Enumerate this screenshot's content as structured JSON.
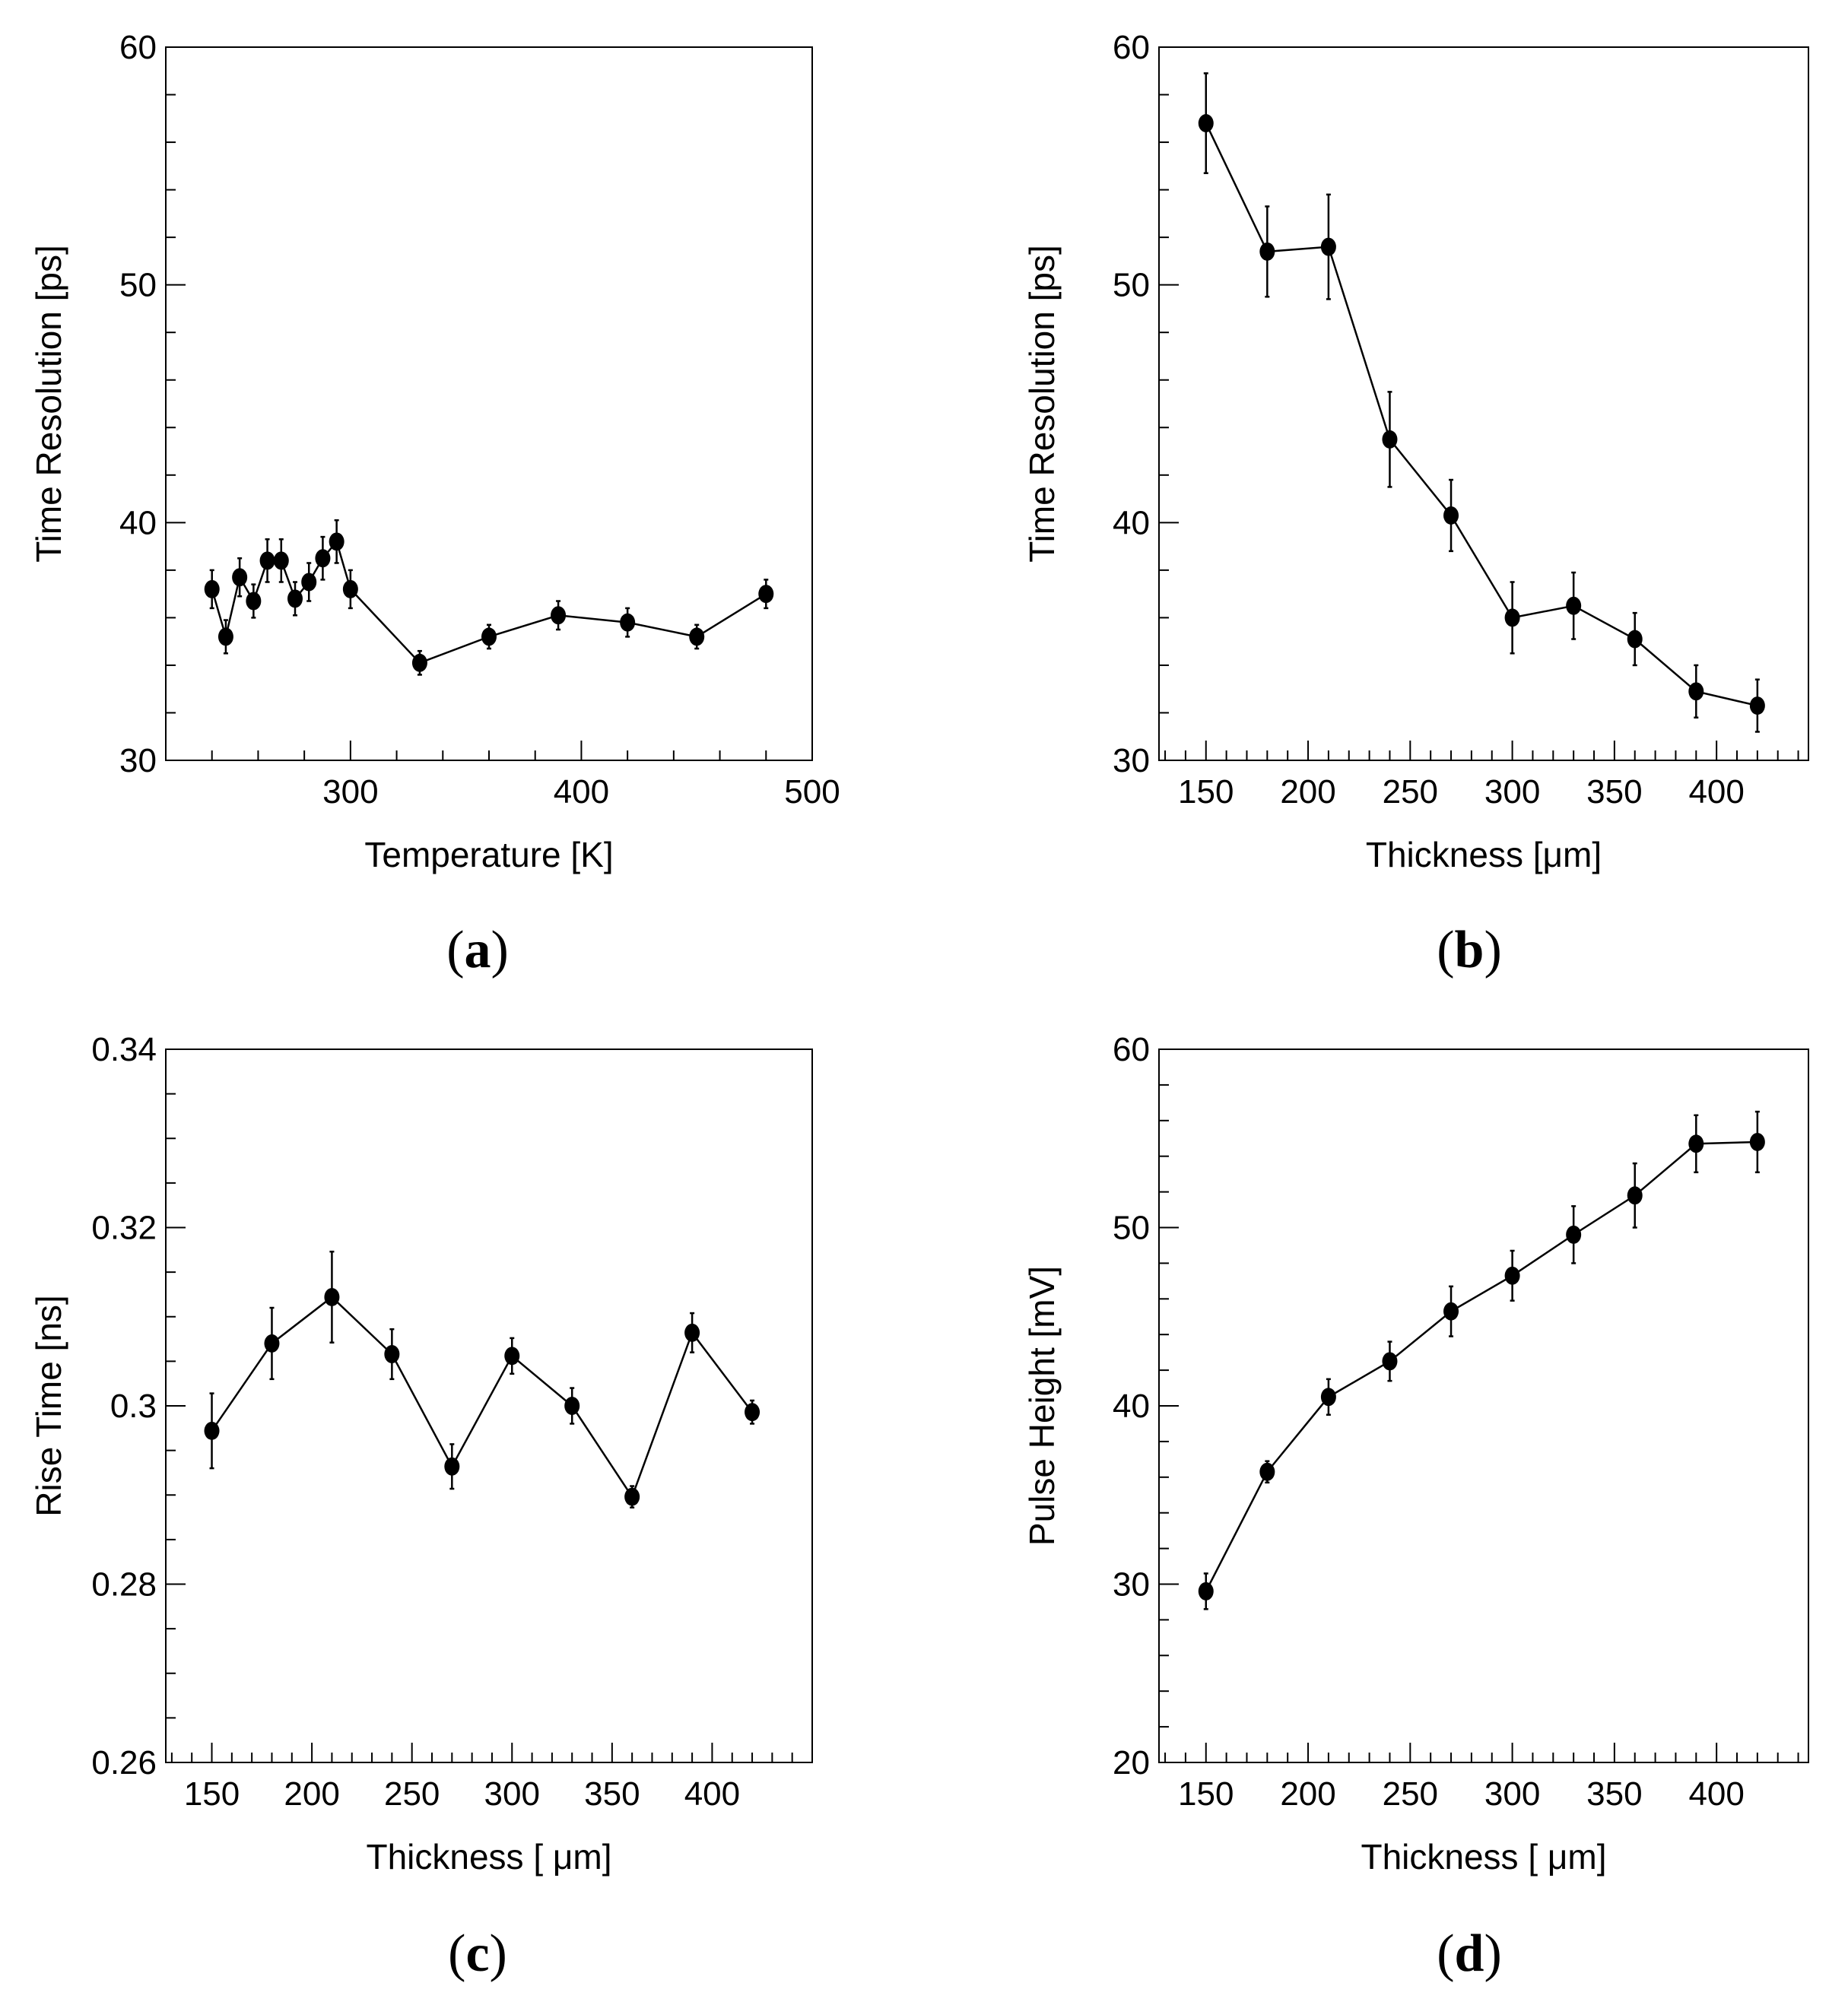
{
  "colors": {
    "background": "#ffffff",
    "ink": "#000000"
  },
  "chart_data": [
    {
      "type": "line",
      "panel": "a",
      "xlabel": "Temperature [K]",
      "ylabel": "Time Resolution [ps]",
      "xlim": [
        220,
        500
      ],
      "ylim": [
        30,
        60
      ],
      "xticks": [
        300,
        400,
        500
      ],
      "xtick_labels": [
        "300",
        "400",
        "500"
      ],
      "yticks": [
        30,
        40,
        50,
        60
      ],
      "ytick_labels": [
        "30",
        "40",
        "50",
        "60"
      ],
      "x_minor_step": 20,
      "y_minor_step": 2,
      "series": [
        {
          "name": "time-resolution-vs-temperature",
          "x": [
            240,
            246,
            252,
            258,
            264,
            270,
            276,
            282,
            288,
            294,
            300,
            330,
            360,
            390,
            420,
            450,
            480
          ],
          "y": [
            37.2,
            35.2,
            37.7,
            36.7,
            38.4,
            38.4,
            36.8,
            37.5,
            38.5,
            39.2,
            37.2,
            34.1,
            35.2,
            36.1,
            35.8,
            35.2,
            37.0
          ],
          "yerr": [
            0.8,
            0.7,
            0.8,
            0.7,
            0.9,
            0.9,
            0.7,
            0.8,
            0.9,
            0.9,
            0.8,
            0.5,
            0.5,
            0.6,
            0.6,
            0.5,
            0.6
          ]
        }
      ]
    },
    {
      "type": "line",
      "panel": "b",
      "xlabel": "Thickness [μm]",
      "ylabel": "Time Resolution [ps]",
      "xlim": [
        127,
        445
      ],
      "ylim": [
        30,
        60
      ],
      "xticks": [
        150,
        200,
        250,
        300,
        350,
        400
      ],
      "xtick_labels": [
        "150",
        "200",
        "250",
        "300",
        "350",
        "400"
      ],
      "yticks": [
        30,
        40,
        50,
        60
      ],
      "ytick_labels": [
        "30",
        "40",
        "50",
        "60"
      ],
      "x_minor_step": 10,
      "y_minor_step": 2,
      "series": [
        {
          "name": "time-resolution-vs-thickness",
          "x": [
            150,
            180,
            210,
            240,
            270,
            300,
            330,
            360,
            390,
            420
          ],
          "y": [
            56.8,
            51.4,
            51.6,
            43.5,
            40.3,
            36.0,
            36.5,
            35.1,
            32.9,
            32.3
          ],
          "yerr": [
            2.1,
            1.9,
            2.2,
            2.0,
            1.5,
            1.5,
            1.4,
            1.1,
            1.1,
            1.1
          ]
        }
      ]
    },
    {
      "type": "line",
      "panel": "c",
      "xlabel": "Thickness [ μm]",
      "ylabel": "Rise Time [ns]",
      "xlim": [
        127,
        450
      ],
      "ylim": [
        0.26,
        0.34
      ],
      "xticks": [
        150,
        200,
        250,
        300,
        350,
        400
      ],
      "xtick_labels": [
        "150",
        "200",
        "250",
        "300",
        "350",
        "400"
      ],
      "yticks": [
        0.26,
        0.28,
        0.3,
        0.32,
        0.34
      ],
      "ytick_labels": [
        "0.26",
        "0.28",
        "0.3",
        "0.32",
        "0.34"
      ],
      "x_minor_step": 10,
      "y_minor_step": 0.005,
      "series": [
        {
          "name": "rise-time-vs-thickness",
          "x": [
            150,
            180,
            210,
            240,
            270,
            300,
            330,
            360,
            390,
            420
          ],
          "y": [
            0.2972,
            0.307,
            0.3122,
            0.3058,
            0.2932,
            0.3056,
            0.3,
            0.2898,
            0.3082,
            0.2993
          ],
          "yerr": [
            0.0042,
            0.004,
            0.0051,
            0.0028,
            0.0025,
            0.002,
            0.002,
            0.0012,
            0.0022,
            0.0013
          ]
        }
      ]
    },
    {
      "type": "line",
      "panel": "d",
      "xlabel": "Thickness [ μm]",
      "ylabel": "Pulse Height [mV]",
      "xlim": [
        127,
        445
      ],
      "ylim": [
        20,
        60
      ],
      "xticks": [
        150,
        200,
        250,
        300,
        350,
        400
      ],
      "xtick_labels": [
        "150",
        "200",
        "250",
        "300",
        "350",
        "400"
      ],
      "yticks": [
        20,
        30,
        40,
        50,
        60
      ],
      "ytick_labels": [
        "20",
        "30",
        "40",
        "50",
        "60"
      ],
      "x_minor_step": 10,
      "y_minor_step": 2,
      "series": [
        {
          "name": "pulse-height-vs-thickness",
          "x": [
            150,
            180,
            210,
            240,
            270,
            300,
            330,
            360,
            390,
            420
          ],
          "y": [
            29.6,
            36.3,
            40.5,
            42.5,
            45.3,
            47.3,
            49.6,
            51.8,
            54.7,
            54.8
          ],
          "yerr": [
            1.0,
            0.6,
            1.0,
            1.1,
            1.4,
            1.4,
            1.6,
            1.8,
            1.6,
            1.7
          ]
        }
      ]
    }
  ],
  "panel_labels": [
    {
      "open": "(",
      "letter": "a",
      "close": ")"
    },
    {
      "open": "(",
      "letter": "b",
      "close": ")"
    },
    {
      "open": "(",
      "letter": "c",
      "close": ")"
    },
    {
      "open": "(",
      "letter": "d",
      "close": ")"
    }
  ]
}
